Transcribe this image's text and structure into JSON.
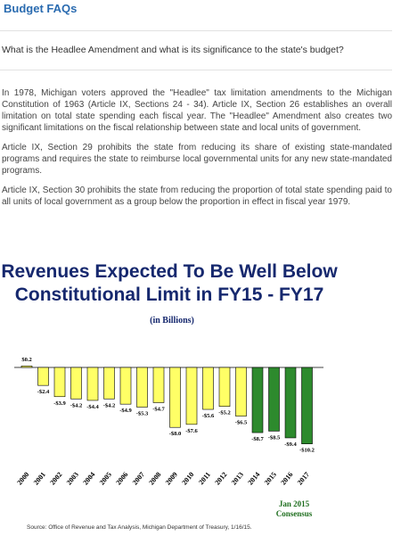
{
  "page": {
    "title": "Budget FAQs",
    "question": "What is the Headlee Amendment and what is its significance to the state's budget?",
    "answer": [
      "In 1978, Michigan voters approved the \"Headlee\" tax limitation amendments to the Michigan Constitution of 1963 (Article IX, Sections 24 - 34). Article IX, Section 26 establishes an overall limitation on total state spending each fiscal year. The \"Headlee\" Amendment also creates two significant limitations on the fiscal relationship between state and local units of government.",
      "Article IX, Section 29 prohibits the state from reducing its share of existing state-mandated programs and requires the state to reimburse local governmental units for any new state-mandated programs.",
      "Article IX, Section 30 prohibits the state from reducing the proportion of total state spending paid to all units of local government as a group below the proportion in effect in fiscal year 1979."
    ]
  },
  "chart": {
    "title_line1": "Revenues Expected To Be Well Below",
    "title_line2": "Constitutional Limit in FY15 - FY17",
    "subtitle": "(in Billions)",
    "consensus_line1": "Jan 2015",
    "consensus_line2": "Consensus",
    "source": "Source:  Office of Revenue and Tax Analysis, Michigan Department of Treasury, 1/16/15."
  },
  "chart_data": {
    "type": "bar",
    "categories": [
      "2000",
      "2001",
      "2002",
      "2003",
      "2004",
      "2005",
      "2006",
      "2007",
      "2008",
      "2009",
      "2010",
      "2011",
      "2012",
      "2013",
      "2014",
      "2015",
      "2016",
      "2017"
    ],
    "values": [
      0.2,
      -2.4,
      -3.9,
      -4.2,
      -4.4,
      -4.2,
      -4.9,
      -5.3,
      -4.7,
      -8.0,
      -7.6,
      -5.6,
      -5.2,
      -6.5,
      -8.7,
      -8.5,
      -9.4,
      -10.2
    ],
    "labels": [
      "$0.2",
      "-$2.4",
      "-$3.9",
      "-$4.2",
      "-$4.4",
      "-$4.2",
      "-$4.9",
      "-$5.3",
      "-$4.7",
      "-$8.0",
      "-$7.6",
      "-$5.6",
      "-$5.2",
      "-$6.5",
      "-$8.7",
      "-$8.5",
      "-$9.4",
      "-$10.2"
    ],
    "colors": {
      "actual": "#ffff66",
      "consensus": "#2d8a2d"
    },
    "consensus_start_index": 14
  }
}
